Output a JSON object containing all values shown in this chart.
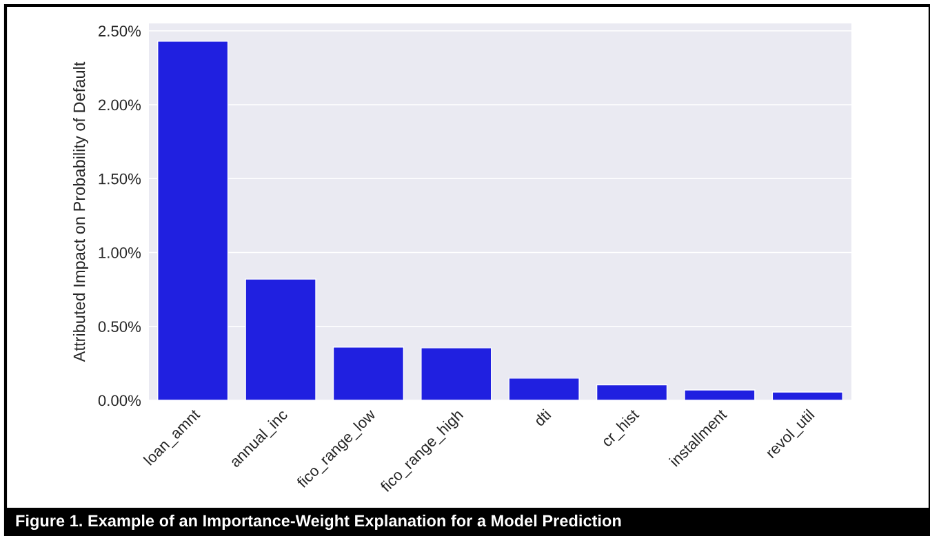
{
  "chart_data": {
    "type": "bar",
    "ylabel": "Attributed Impact on Probability of Default",
    "categories": [
      "loan_amnt",
      "annual_inc",
      "fico_range_low",
      "fico_range_high",
      "dti",
      "cr_hist",
      "installment",
      "revol_util"
    ],
    "values": [
      2.43,
      0.82,
      0.36,
      0.355,
      0.15,
      0.105,
      0.07,
      0.056
    ],
    "color": "#2020e0",
    "ylim": [
      0,
      2.55
    ],
    "yticks": [
      {
        "value": 0,
        "label": "0.00%"
      },
      {
        "value": 0.5,
        "label": "0.50%"
      },
      {
        "value": 1.0,
        "label": "1.00%"
      },
      {
        "value": 1.5,
        "label": "1.50%"
      },
      {
        "value": 2.0,
        "label": "2.00%"
      },
      {
        "value": 2.5,
        "label": "2.50%"
      }
    ],
    "grid": "y",
    "annotations": [
      "Figure 1. Example of an Importance-Weight Explanation for a Model Prediction"
    ]
  }
}
